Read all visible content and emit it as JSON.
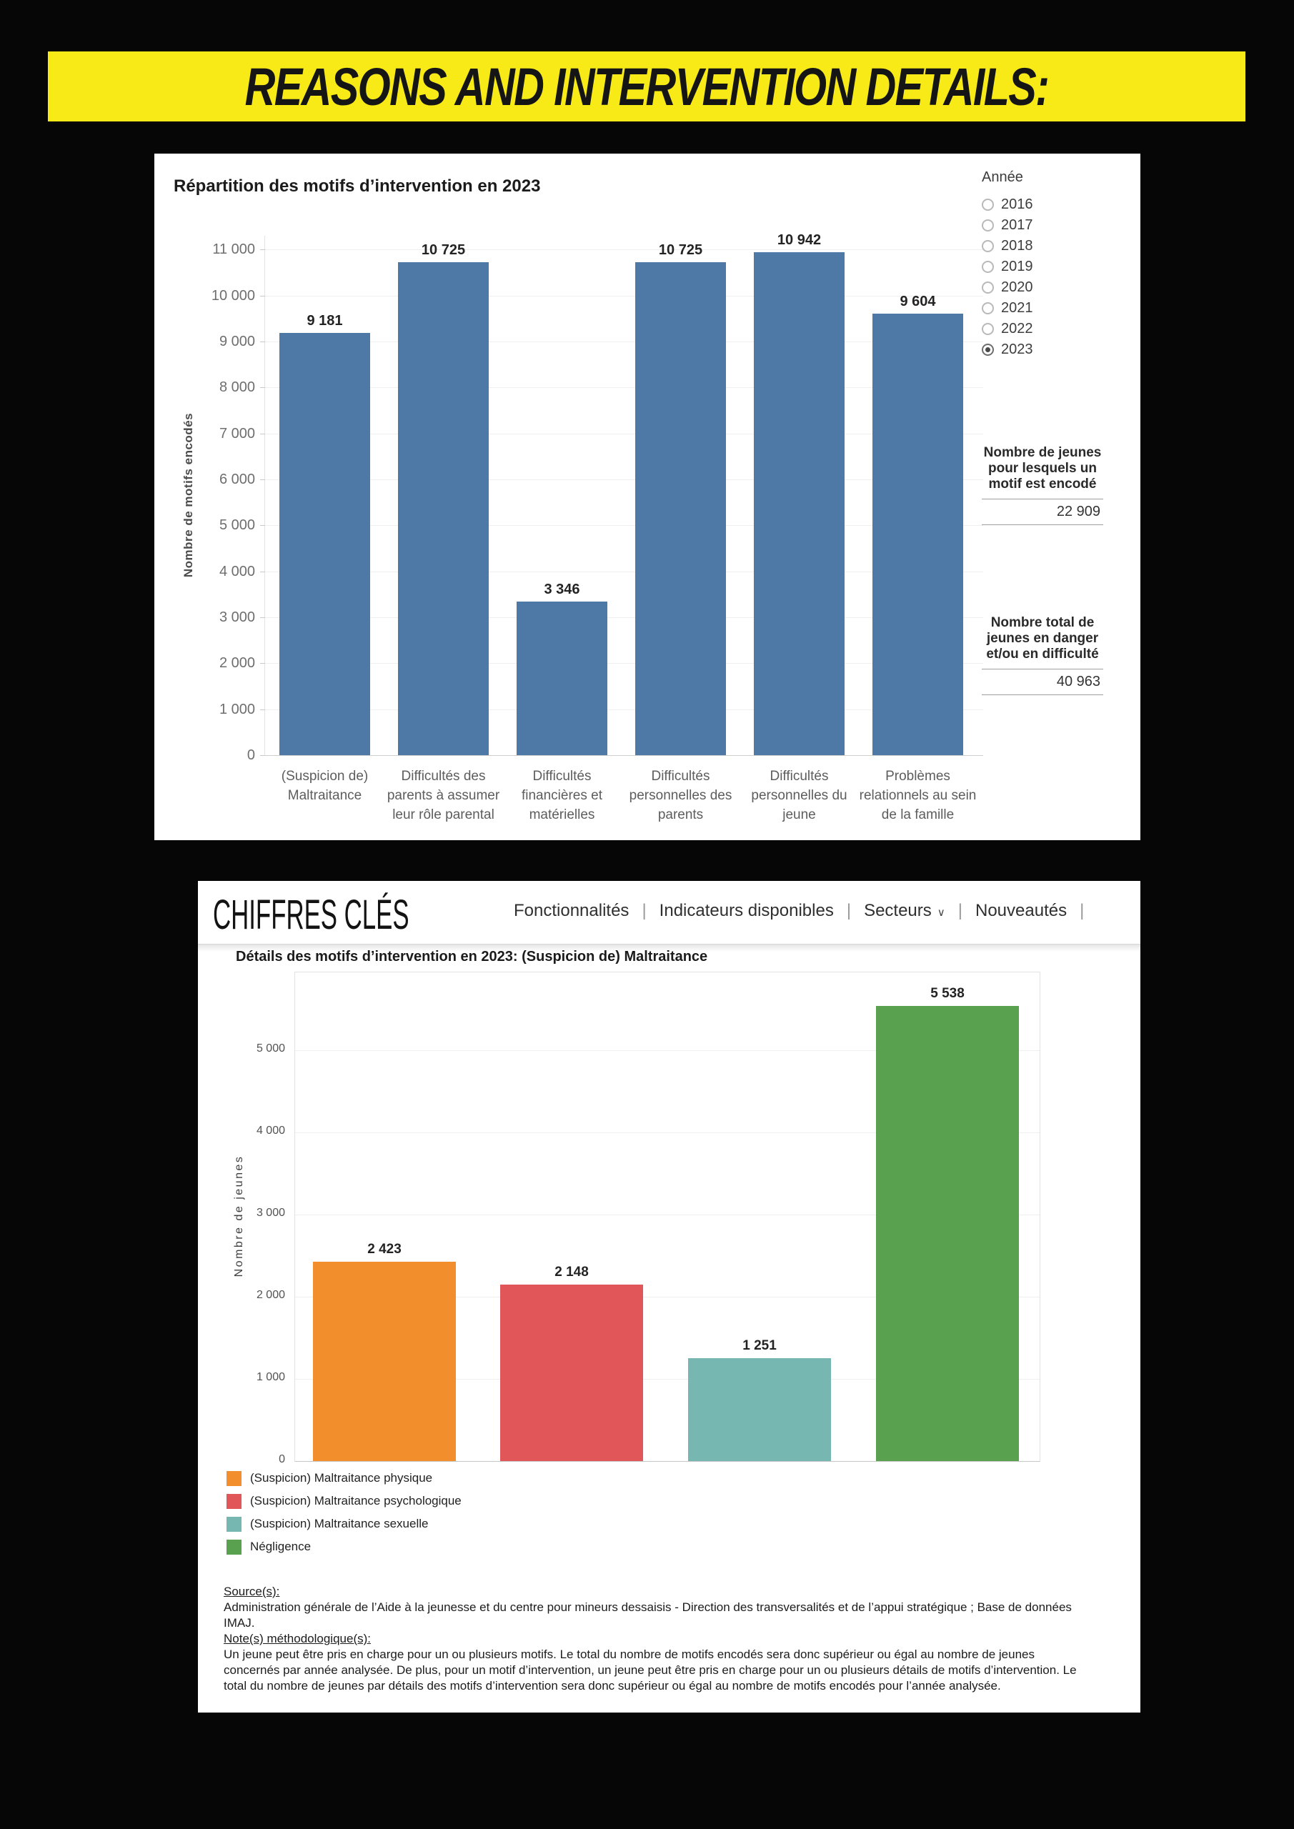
{
  "banner": {
    "text": "REASONS AND INTERVENTION DETAILS:"
  },
  "panel1": {
    "year_filter": {
      "label": "Année",
      "options": [
        "2016",
        "2017",
        "2018",
        "2019",
        "2020",
        "2021",
        "2022",
        "2023"
      ],
      "selected": "2023"
    },
    "stats": [
      {
        "label": "Nombre de jeunes pour lesquels un motif est encodé",
        "value": "22 909"
      },
      {
        "label": "Nombre total de jeunes en danger et/ou en difficulté",
        "value": "40 963"
      }
    ]
  },
  "panel2": {
    "brand": "CHIFFRES CLÉS",
    "nav": [
      {
        "label": "Fonctionnalités",
        "chevron": false
      },
      {
        "label": "Indicateurs disponibles",
        "chevron": false
      },
      {
        "label": "Secteurs",
        "chevron": true
      },
      {
        "label": "Nouveautés",
        "chevron": false
      }
    ],
    "source_heading": "Source(s):",
    "source_text": "Administration générale de l’Aide à la jeunesse et du centre pour mineurs dessaisis - Direction des transversalités et de l’appui stratégique ; Base de données IMAJ.",
    "notes_heading": "Note(s) méthodologique(s):",
    "notes_text": "Un jeune peut être pris en charge pour un ou plusieurs motifs. Le total du nombre de motifs encodés sera donc supérieur ou égal au nombre de jeunes concernés par année analysée. De plus, pour un motif d’intervention, un jeune peut être pris en charge pour un ou plusieurs détails de motifs d’intervention. Le total du nombre de jeunes par détails des motifs d’intervention sera donc supérieur ou égal au nombre de motifs encodés pour l’année analysée."
  },
  "chart_data": [
    {
      "type": "bar",
      "title": "Répartition des motifs d’intervention en 2023",
      "ylabel": "Nombre de motifs encodés",
      "categories": [
        "(Suspicion de) Maltraitance",
        "Difficultés des parents à assumer leur rôle parental",
        "Difficultés financières et matérielles",
        "Difficultés personnelles des parents",
        "Difficultés personnelles du jeune",
        "Problèmes relationnels au sein de la famille"
      ],
      "values": [
        9181,
        10725,
        3346,
        10725,
        10942,
        9604
      ],
      "value_labels": [
        "9 181",
        "10 725",
        "3 346",
        "10 725",
        "10 942",
        "9 604"
      ],
      "bar_color": "#4e79a7",
      "ylim": [
        0,
        11300
      ],
      "ytick_step": 1000,
      "ytick_labels": [
        "0",
        "1 000",
        "2 000",
        "3 000",
        "4 000",
        "5 000",
        "6 000",
        "7 000",
        "8 000",
        "9 000",
        "10 000",
        "11 000"
      ],
      "grid": true,
      "legend": "none"
    },
    {
      "type": "bar",
      "title": "Détails des motifs d’intervention en 2023: (Suspicion de) Maltraitance",
      "ylabel": "Nombre de jeunes",
      "categories": [
        "(Suspicion) Maltraitance physique",
        "(Suspicion) Maltraitance psychologique",
        "(Suspicion) Maltraitance sexuelle",
        "Négligence"
      ],
      "values": [
        2423,
        2148,
        1251,
        5538
      ],
      "value_labels": [
        "2 423",
        "2 148",
        "1 251",
        "5 538"
      ],
      "colors": [
        "#f28e2b",
        "#e15759",
        "#76b7b2",
        "#59a14f"
      ],
      "ylim": [
        0,
        5950
      ],
      "ytick_step": 1000,
      "ytick_labels": [
        "0",
        "1 000",
        "2 000",
        "3 000",
        "4 000",
        "5 000"
      ],
      "grid": true,
      "legend_position": "bottom-left"
    }
  ]
}
